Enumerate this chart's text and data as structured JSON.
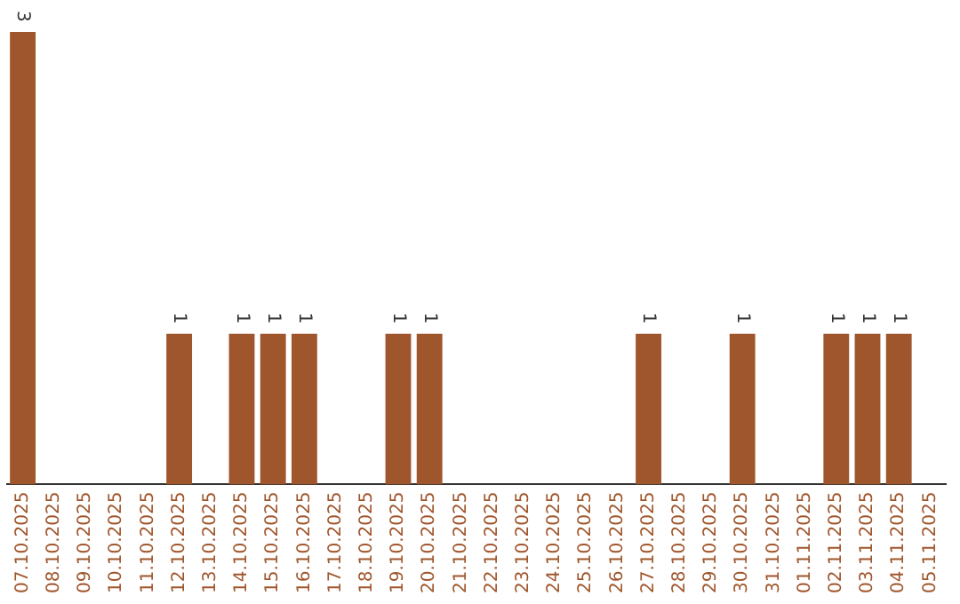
{
  "chart_data": {
    "type": "bar",
    "categories": [
      "07.10.2025",
      "08.10.2025",
      "09.10.2025",
      "10.10.2025",
      "11.10.2025",
      "12.10.2025",
      "13.10.2025",
      "14.10.2025",
      "15.10.2025",
      "16.10.2025",
      "17.10.2025",
      "18.10.2025",
      "19.10.2025",
      "20.10.2025",
      "21.10.2025",
      "22.10.2025",
      "23.10.2025",
      "24.10.2025",
      "25.10.2025",
      "26.10.2025",
      "27.10.2025",
      "28.10.2025",
      "29.10.2025",
      "30.10.2025",
      "31.10.2025",
      "01.11.2025",
      "02.11.2025",
      "03.11.2025",
      "04.11.2025",
      "05.11.2025"
    ],
    "values": [
      3,
      0,
      0,
      0,
      0,
      1,
      0,
      1,
      1,
      1,
      0,
      0,
      1,
      1,
      0,
      0,
      0,
      0,
      0,
      0,
      1,
      0,
      0,
      1,
      0,
      0,
      1,
      1,
      1,
      0
    ],
    "value_labels": [
      "3",
      null,
      null,
      null,
      null,
      "1",
      null,
      "1",
      "1",
      "1",
      null,
      null,
      "1",
      "1",
      null,
      null,
      null,
      null,
      null,
      null,
      "1",
      null,
      null,
      "1",
      null,
      null,
      "1",
      "1",
      "1",
      null
    ],
    "color": "#a0562c",
    "tick_labels": "x",
    "grid": false,
    "legend": false
  }
}
